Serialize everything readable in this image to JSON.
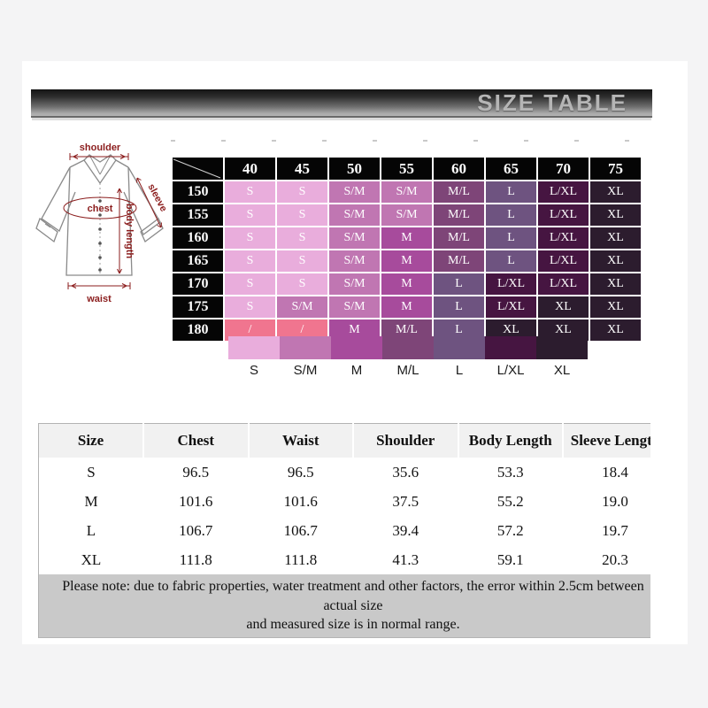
{
  "header": {
    "title": "SIZE TABLE"
  },
  "diagram": {
    "labels": {
      "shoulder": "shoulder",
      "chest": "chest",
      "sleeve": "sleeve",
      "body_length": "body length",
      "waist": "waist"
    }
  },
  "colors": {
    "S": "#e9addc",
    "S/M": "#c076b2",
    "M": "#a74b9c",
    "M/L": "#7e4578",
    "L": "#6e5380",
    "L/XL": "#461541",
    "XL": "#2c1c2e",
    "slash": "#f0758f",
    "matrix_header_bg": "#050505"
  },
  "size_matrix": {
    "col_headers": [
      "40",
      "45",
      "50",
      "55",
      "60",
      "65",
      "70",
      "75"
    ],
    "rows": [
      {
        "label": "150",
        "cells": [
          "S",
          "S",
          "S/M",
          "S/M",
          "M/L",
          "L",
          "L/XL",
          "XL"
        ]
      },
      {
        "label": "155",
        "cells": [
          "S",
          "S",
          "S/M",
          "S/M",
          "M/L",
          "L",
          "L/XL",
          "XL"
        ]
      },
      {
        "label": "160",
        "cells": [
          "S",
          "S",
          "S/M",
          "M",
          "M/L",
          "L",
          "L/XL",
          "XL"
        ]
      },
      {
        "label": "165",
        "cells": [
          "S",
          "S",
          "S/M",
          "M",
          "M/L",
          "L",
          "L/XL",
          "XL"
        ]
      },
      {
        "label": "170",
        "cells": [
          "S",
          "S",
          "S/M",
          "M",
          "L",
          "L/XL",
          "L/XL",
          "XL"
        ]
      },
      {
        "label": "175",
        "cells": [
          "S",
          "S/M",
          "S/M",
          "M",
          "L",
          "L/XL",
          "XL",
          "XL"
        ]
      },
      {
        "label": "180",
        "cells": [
          "/",
          "/",
          "M",
          "M/L",
          "L",
          "XL",
          "XL",
          "XL"
        ]
      }
    ]
  },
  "legend": {
    "items": [
      {
        "label": "S",
        "color": "#e9addc"
      },
      {
        "label": "S/M",
        "color": "#c076b2"
      },
      {
        "label": "M",
        "color": "#a74b9c"
      },
      {
        "label": "M/L",
        "color": "#7e4578"
      },
      {
        "label": "L",
        "color": "#6e5380"
      },
      {
        "label": "L/XL",
        "color": "#461541"
      },
      {
        "label": "XL",
        "color": "#2c1c2e"
      }
    ]
  },
  "measurements": {
    "headers": [
      "Size",
      "Chest",
      "Waist",
      "Shoulder",
      "Body Length",
      "Sleeve Length"
    ],
    "rows": [
      [
        "S",
        "96.5",
        "96.5",
        "35.6",
        "53.3",
        "18.4"
      ],
      [
        "M",
        "101.6",
        "101.6",
        "37.5",
        "55.2",
        "19.0"
      ],
      [
        "L",
        "106.7",
        "106.7",
        "39.4",
        "57.2",
        "19.7"
      ],
      [
        "XL",
        "111.8",
        "111.8",
        "41.3",
        "59.1",
        "20.3"
      ]
    ],
    "note_lines": [
      "Please note: due to fabric properties, water treatment and other factors, the error within 2.5cm between actual size",
      "and measured size is in normal range."
    ]
  }
}
